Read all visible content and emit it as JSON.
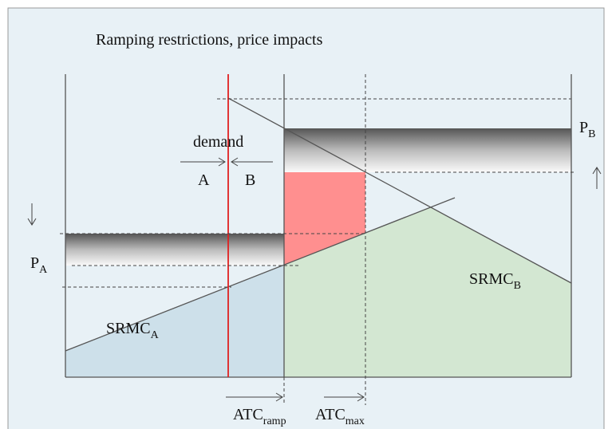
{
  "title": "Ramping restrictions, price impacts",
  "labels": {
    "demand": "demand",
    "a": "A",
    "b": "B",
    "p_b": {
      "main": "P",
      "sub": "B"
    },
    "p_a": {
      "main": "P",
      "sub": "A"
    },
    "srmc_a": {
      "main": "SRMC",
      "sub": "A"
    },
    "srmc_b": {
      "main": "SRMC",
      "sub": "B"
    },
    "atc_ramp": {
      "main": "ATC",
      "sub": "ramp"
    },
    "atc_max": {
      "main": "ATC",
      "sub": "max"
    }
  }
}
